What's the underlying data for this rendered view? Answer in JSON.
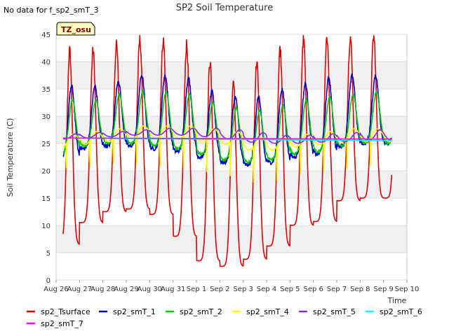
{
  "chart_data": {
    "type": "line",
    "title": "SP2 Soil Temperature",
    "note": "No data for f_sp2_smT_3",
    "badge": "TZ_osu",
    "xlabel": "Time",
    "ylabel": "Soil Temperature (C)",
    "ylim": [
      0,
      45
    ],
    "xlim": [
      0,
      15
    ],
    "yticks": [
      0,
      5,
      10,
      15,
      20,
      25,
      30,
      35,
      40,
      45
    ],
    "x_tick_labels": [
      "Aug 26",
      "Aug 27",
      "Aug 28",
      "Aug 29",
      "Aug 30",
      "Aug 31",
      "Sep 1",
      "Sep 2",
      "Sep 3",
      "Sep 4",
      "Sep 5",
      "Sep 6",
      "Sep 7",
      "Sep 8",
      "Sep 9",
      "Sep 10"
    ],
    "x_units": "days since Aug 26",
    "series": [
      {
        "name": "sp2_Tsurface",
        "color": "#e00000",
        "daily_max": [
          42,
          42,
          43,
          44,
          44,
          43,
          40,
          36,
          40,
          42,
          44,
          44.5,
          44.5,
          44.5
        ],
        "daily_min": [
          6.5,
          10.5,
          12.5,
          13,
          12,
          8,
          3.5,
          2.5,
          3.8,
          6.2,
          10,
          10.7,
          14.5,
          15
        ]
      },
      {
        "name": "sp2_smT_1",
        "color": "#0000cc",
        "daily_max": [
          35.5,
          35.5,
          36.5,
          37.5,
          37.5,
          37,
          34.5,
          33.5,
          33.5,
          35,
          36,
          37,
          37.5,
          37.5
        ],
        "daily_min": [
          22,
          24,
          24.5,
          24.5,
          24,
          23.5,
          22.5,
          21.5,
          21,
          21.5,
          22.5,
          23,
          24.5,
          25
        ]
      },
      {
        "name": "sp2_smT_2",
        "color": "#00cc00",
        "daily_max": [
          33,
          33,
          34,
          34.5,
          34.5,
          34,
          32.5,
          31.5,
          31,
          32,
          33,
          33.5,
          34,
          34.5
        ],
        "daily_min": [
          23,
          24.5,
          25,
          25,
          24.5,
          24,
          23,
          22,
          21.5,
          22,
          23,
          23.5,
          24.5,
          25
        ]
      },
      {
        "name": "sp2_smT_4",
        "color": "#ffff00",
        "daily_max": [
          28,
          28.5,
          29,
          29.5,
          29.5,
          29.5,
          29,
          28.5,
          27.5,
          27.5,
          28,
          28.5,
          29,
          29
        ],
        "daily_min": [
          18,
          19,
          20,
          20,
          20,
          20,
          19.5,
          19,
          17.5,
          17.5,
          18.5,
          18.5,
          18.5,
          19
        ]
      },
      {
        "name": "sp2_smT_5",
        "color": "#8a2be2",
        "daily_max": [
          26.8,
          27,
          27.2,
          27.5,
          27.8,
          27.8,
          27.8,
          27.5,
          27,
          26.5,
          26.5,
          26.8,
          27,
          27.5
        ],
        "daily_min": [
          25.8,
          26,
          26.2,
          26.5,
          26.5,
          26.5,
          26.2,
          25.8,
          25.2,
          25,
          25,
          25.2,
          25.3,
          25.5
        ]
      },
      {
        "name": "sp2_smT_6",
        "color": "#00ffff",
        "start": 26.0,
        "end": 25.5
      },
      {
        "name": "sp2_smT_7",
        "color": "#ff00ff",
        "start": 26.0,
        "end": 25.8
      }
    ]
  }
}
